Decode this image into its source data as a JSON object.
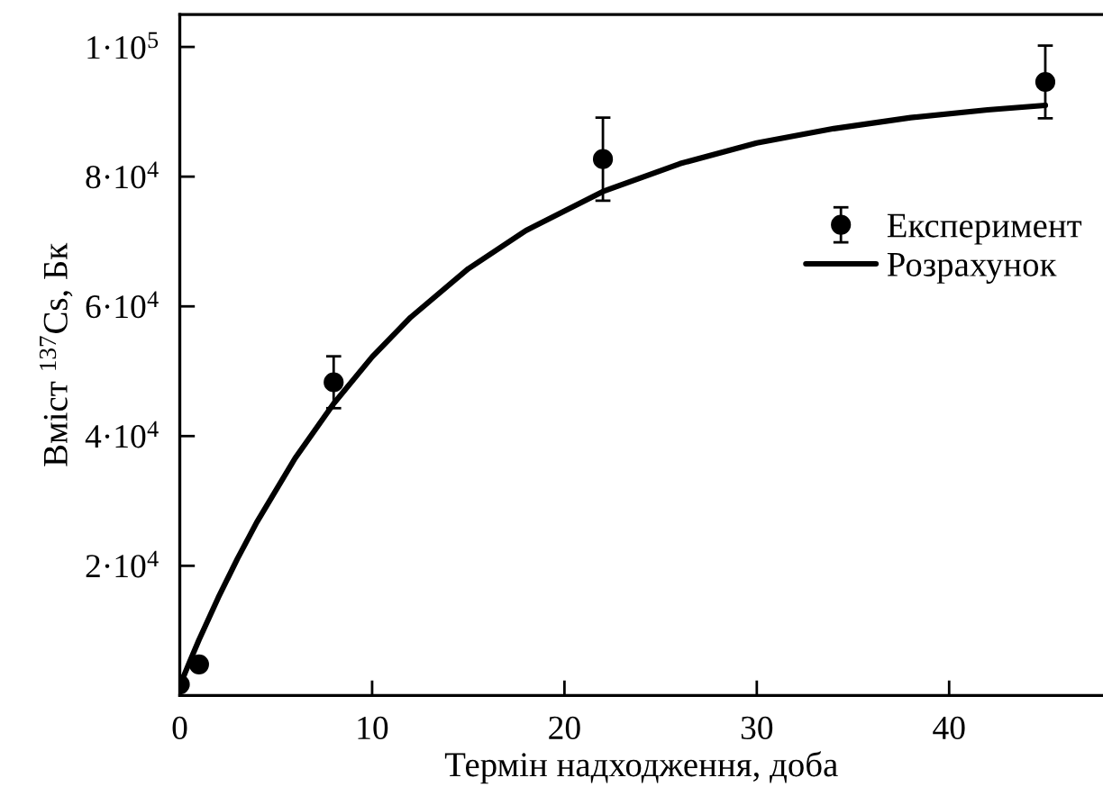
{
  "chart_data": {
    "type": "scatter",
    "xlabel": "Термін надходження, доба",
    "ylabel": "Вміст $^{137}$Cs, Бк",
    "xlim": [
      0,
      48
    ],
    "xticks": [
      0,
      10,
      20,
      30,
      40
    ],
    "ylim": [
      0,
      105000
    ],
    "yticks": [
      {
        "value": 20000,
        "label": "2·10$^{4}$"
      },
      {
        "value": 40000,
        "label": "4·10$^{4}$"
      },
      {
        "value": 60000,
        "label": "6·10$^{4}$"
      },
      {
        "value": 80000,
        "label": "8·10$^{4}$"
      },
      {
        "value": 100000,
        "label": "1·10$^{5}$"
      }
    ],
    "grid": false,
    "legend": "top right",
    "marker": "circle",
    "series": [
      {
        "name": "Експеримент",
        "color": "#000000",
        "x": [
          0,
          1,
          8,
          22,
          45
        ],
        "values": [
          1700,
          4800,
          48300,
          82700,
          94600
        ],
        "errors": [
          null,
          null,
          4000,
          6400,
          5600
        ]
      },
      {
        "name": "Розрахунок",
        "type": "line",
        "color": "#000000",
        "marker": "none",
        "line_style": "solid",
        "x": [
          0,
          0.5,
          1,
          2,
          3,
          4,
          6,
          8,
          10,
          12,
          15,
          18,
          22,
          26,
          30,
          34,
          38,
          42,
          45
        ],
        "values": [
          1500,
          5100,
          8600,
          15100,
          21100,
          26700,
          36600,
          45000,
          52200,
          58300,
          65800,
          71700,
          77700,
          82000,
          85200,
          87400,
          89100,
          90300,
          91000
        ]
      }
    ]
  }
}
